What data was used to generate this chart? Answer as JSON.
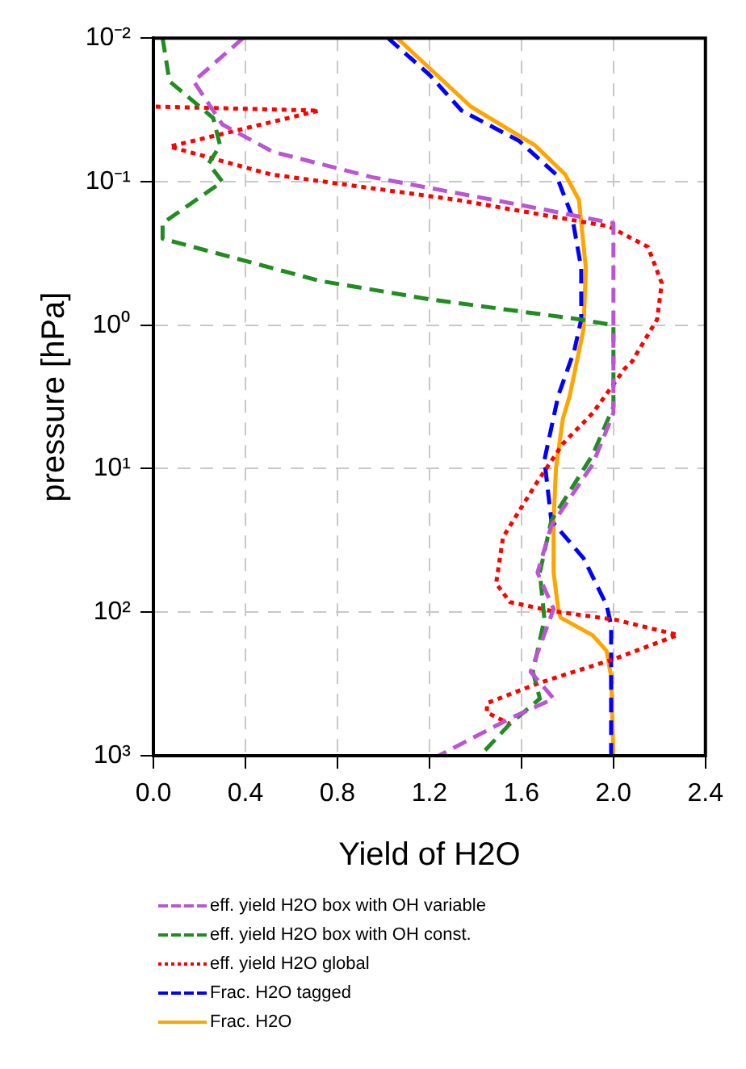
{
  "chart_data": {
    "type": "line",
    "xlabel": "Yield of H2O",
    "ylabel": "pressure [hPa]",
    "xlim": [
      0,
      2.4
    ],
    "xticks": [
      {
        "value": 0,
        "label": "0.0"
      },
      0.4,
      0.8,
      1.2,
      1.6,
      {
        "value": 2,
        "label": "2.0"
      },
      2.4
    ],
    "ylim": [
      1000,
      0.01
    ],
    "yticks": [
      {
        "value": 0.01,
        "label": "10⁻²"
      },
      {
        "value": 0.1,
        "label": "10⁻¹"
      },
      {
        "value": 1,
        "label": "10⁰"
      },
      {
        "value": 10,
        "label": "10¹"
      },
      {
        "value": 100,
        "label": "10²"
      },
      {
        "value": 1000,
        "label": "10³"
      }
    ],
    "log": "y",
    "grid": true,
    "legend": "bottom",
    "marker": "none",
    "series": [
      {
        "name": "eff. yield H2O box with OH variable",
        "color": "#ba55d3",
        "line_style": "dashed",
        "x": [
          0.39,
          0.175,
          0.3,
          0.52,
          0.95,
          1.62,
          2.0,
          2.0,
          1.91,
          1.73,
          1.67,
          1.74,
          1.64,
          1.74,
          1.55,
          1.24
        ],
        "values": [
          0.01,
          0.02,
          0.04,
          0.062,
          0.093,
          0.148,
          0.195,
          4.1,
          9.3,
          25,
          53,
          95,
          260,
          400,
          550,
          1000
        ]
      },
      {
        "name": "eff. yield H2O box with OH const.",
        "color": "#228b22",
        "line_style": "dashed",
        "x": [
          0.04,
          0.07,
          0.26,
          0.29,
          0.24,
          0.3,
          0.04,
          0.04,
          0.72,
          1.2,
          1.85,
          2.0,
          2.0,
          1.91,
          1.73,
          1.68,
          1.7,
          1.65,
          1.68,
          1.55,
          1.42
        ],
        "values": [
          0.01,
          0.02,
          0.036,
          0.056,
          0.075,
          0.1,
          0.195,
          0.25,
          0.49,
          0.66,
          0.91,
          1.0,
          3.7,
          8,
          23,
          53,
          112,
          260,
          400,
          600,
          1000
        ]
      },
      {
        "name": "eff. yield H2O global",
        "color": "#ff0000",
        "line_style": "dotted",
        "x": [
          0.01,
          0.72,
          0.07,
          0.51,
          1.32,
          1.98,
          2.15,
          2.21,
          2.19,
          2.08,
          2.05,
          1.91,
          1.78,
          1.66,
          1.52,
          1.49,
          1.55,
          1.73,
          2.01,
          2.28,
          2.01,
          1.68,
          1.45,
          1.45,
          1.55
        ],
        "values": [
          0.03,
          0.032,
          0.057,
          0.089,
          0.134,
          0.205,
          0.285,
          0.51,
          0.91,
          1.8,
          2.0,
          4.1,
          6.7,
          13,
          30,
          63,
          85,
          98,
          113,
          144,
          210,
          310,
          430,
          500,
          600
        ]
      },
      {
        "name": "Frac. H2O tagged",
        "color": "#0000ff",
        "line_style": "dashed",
        "x": [
          1.02,
          1.2,
          1.34,
          1.59,
          1.75,
          1.82,
          1.86,
          1.86,
          1.83,
          1.76,
          1.7,
          1.73,
          1.87,
          1.97,
          1.99,
          1.99
        ],
        "values": [
          0.01,
          0.018,
          0.032,
          0.052,
          0.089,
          0.174,
          0.4,
          0.91,
          1.5,
          3.1,
          8.7,
          23,
          42,
          89,
          123,
          1000
        ]
      },
      {
        "name": "Frac. H2O",
        "color": "#ffa500",
        "line_style": "solid",
        "x": [
          1.06,
          1.38,
          1.66,
          1.79,
          1.85,
          1.88,
          1.87,
          1.81,
          1.78,
          1.75,
          1.74,
          1.74,
          1.76,
          1.77,
          1.91,
          1.97,
          1.99,
          2.0
        ],
        "values": [
          0.01,
          0.03,
          0.056,
          0.089,
          0.134,
          0.4,
          1.07,
          3.1,
          4.5,
          10,
          23,
          53,
          95,
          109,
          145,
          186,
          280,
          1000
        ]
      }
    ]
  }
}
